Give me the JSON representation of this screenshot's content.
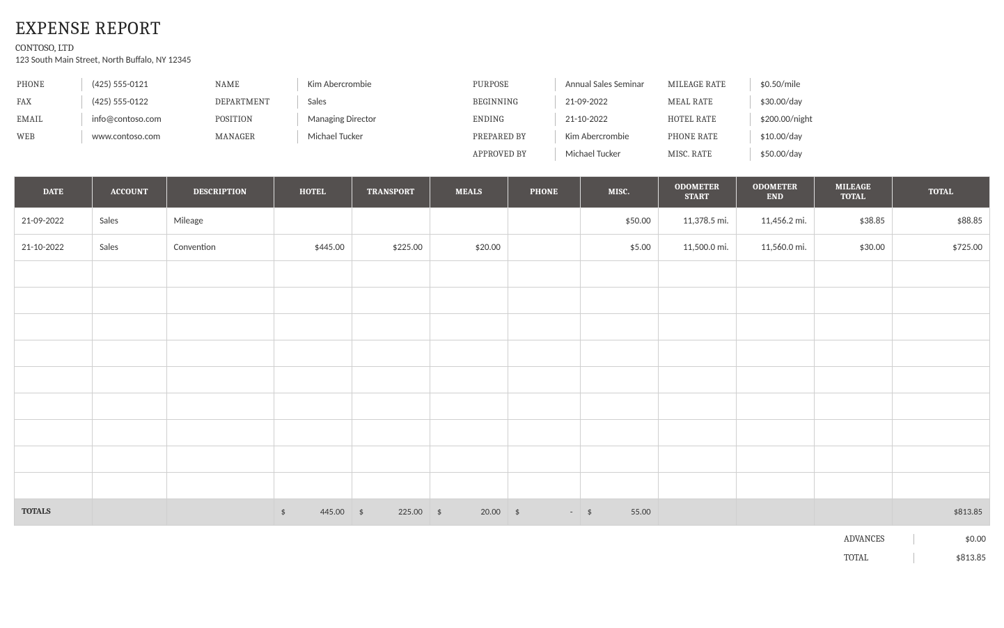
{
  "header": {
    "title": "EXPENSE REPORT",
    "company": "CONTOSO, LTD",
    "address": "123 South Main Street, North Buffalo, NY 12345"
  },
  "contact": {
    "phone_label": "PHONE",
    "phone": "(425) 555-0121",
    "fax_label": "FAX",
    "fax": "(425) 555-0122",
    "email_label": "EMAIL",
    "email": "info@contoso.com",
    "web_label": "WEB",
    "web": "www.contoso.com"
  },
  "person": {
    "name_label": "NAME",
    "name": "Kim Abercrombie",
    "dept_label": "DEPARTMENT",
    "dept": "Sales",
    "pos_label": "POSITION",
    "pos": "Managing Director",
    "mgr_label": "MANAGER",
    "mgr": "Michael Tucker"
  },
  "trip": {
    "purpose_label": "PURPOSE",
    "purpose": "Annual Sales Seminar",
    "begin_label": "BEGINNING",
    "begin": "21-09-2022",
    "end_label": "ENDING",
    "end": "21-10-2022",
    "prep_label": "PREPARED BY",
    "prep": "Kim Abercrombie",
    "appr_label": "APPROVED BY",
    "appr": "Michael Tucker"
  },
  "rates": {
    "mileage_label": "MILEAGE RATE",
    "mileage": "$0.50/mile",
    "meal_label": "MEAL RATE",
    "meal": "$30.00/day",
    "hotel_label": "HOTEL RATE",
    "hotel": "$200.00/night",
    "phone_label": "PHONE RATE",
    "phone": "$10.00/day",
    "misc_label": "MISC. RATE",
    "misc": "$50.00/day"
  },
  "table": {
    "columns": [
      "DATE",
      "ACCOUNT",
      "DESCRIPTION",
      "HOTEL",
      "TRANSPORT",
      "MEALS",
      "PHONE",
      "MISC.",
      "ODOMETER START",
      "ODOMETER END",
      "MILEAGE TOTAL",
      "TOTAL"
    ],
    "col_widths_pct": [
      8,
      7.6,
      11,
      8,
      8,
      8,
      7.4,
      8,
      8,
      8,
      8,
      10
    ],
    "header_bg": "#54504f",
    "header_fg": "#ffffff",
    "border_color": "#cfcfcf",
    "totals_bg": "#d9d9d9",
    "negative_color": "#c00000",
    "empty_row_count": 9,
    "rows": [
      {
        "date": "21-09-2022",
        "account": "Sales",
        "desc": "Mileage",
        "hotel": "",
        "transport": "",
        "meals": "",
        "phone": "",
        "misc": "$50.00",
        "odo_start": "11,378.5  mi.",
        "odo_end": "11,456.2  mi.",
        "mileage_total": "$38.85",
        "total": "$88.85",
        "hotel_neg": false
      },
      {
        "date": "21-10-2022",
        "account": "Sales",
        "desc": "Convention",
        "hotel": "$445.00",
        "transport": "$225.00",
        "meals": "$20.00",
        "phone": "",
        "misc": "$5.00",
        "odo_start": "11,500.0  mi.",
        "odo_end": "11,560.0  mi.",
        "mileage_total": "$30.00",
        "total": "$725.00",
        "hotel_neg": true
      }
    ],
    "totals": {
      "label": "TOTALS",
      "hotel": "445.00",
      "transport": "225.00",
      "meals": "20.00",
      "phone": "-",
      "misc": "55.00",
      "grand": "$813.85"
    }
  },
  "summary": {
    "advances_label": "ADVANCES",
    "advances": "$0.00",
    "total_label": "TOTAL",
    "total": "$813.85"
  }
}
